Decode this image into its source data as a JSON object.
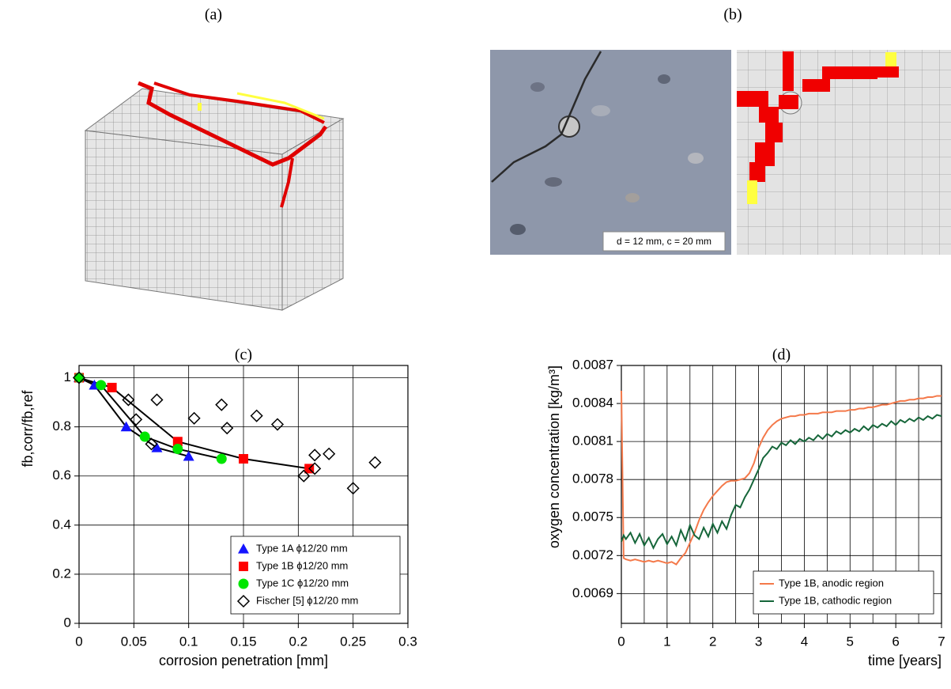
{
  "figure": {
    "panel_a": "(a)",
    "panel_b": "(b)",
    "photo_caption": "d = 12 mm, c = 20 mm"
  },
  "chart_data": [
    {
      "type": "scatter",
      "title": "(c)",
      "xlabel": "corrosion penetration [mm]",
      "ylabel": "fb,corr/fb,ref",
      "xlim": [
        0,
        0.3
      ],
      "xticks": [
        0,
        0.05,
        0.1,
        0.15,
        0.2,
        0.25,
        0.3
      ],
      "ylim": [
        0,
        1.05
      ],
      "yticks": [
        0,
        0.2,
        0.4,
        0.6,
        0.8,
        1
      ],
      "grid": true,
      "legend": "lower right",
      "series": [
        {
          "name": "Type 1A ϕ12/20 mm",
          "color": "#1414ff",
          "marker": "triangle",
          "line": true,
          "line_color": "#000000",
          "x": [
            0,
            0.014,
            0.043,
            0.071,
            0.1
          ],
          "values": [
            1,
            0.97,
            0.8,
            0.715,
            0.68
          ]
        },
        {
          "name": "Type 1B ϕ12/20 mm",
          "color": "#ff0000",
          "marker": "square",
          "line": true,
          "line_color": "#000000",
          "x": [
            0,
            0.03,
            0.09,
            0.15,
            0.21
          ],
          "values": [
            1,
            0.96,
            0.74,
            0.67,
            0.63
          ]
        },
        {
          "name": "Type 1C ϕ12/20 mm",
          "color": "#00e600",
          "marker": "circle",
          "line": true,
          "line_color": "#000000",
          "x": [
            0,
            0.02,
            0.06,
            0.09,
            0.13
          ],
          "values": [
            1,
            0.97,
            0.76,
            0.71,
            0.67
          ]
        },
        {
          "name": "Fischer [5] ϕ12/20 mm",
          "color": "#000000",
          "marker": "diamond",
          "line": false,
          "x": [
            0,
            0.045,
            0.052,
            0.071,
            0.066,
            0.105,
            0.13,
            0.135,
            0.162,
            0.181,
            0.205,
            0.215,
            0.215,
            0.228,
            0.25,
            0.27
          ],
          "values": [
            1,
            0.91,
            0.83,
            0.91,
            0.73,
            0.835,
            0.89,
            0.795,
            0.845,
            0.81,
            0.6,
            0.685,
            0.63,
            0.69,
            0.55,
            0.655
          ]
        }
      ]
    },
    {
      "type": "line",
      "title": "(d)",
      "xlabel": "time [years]",
      "ylabel": "oxygen concentration  [kg/m³]",
      "xlim": [
        0,
        7
      ],
      "xticks": [
        0,
        1,
        2,
        3,
        4,
        5,
        6,
        7
      ],
      "xminorgrid": [
        0.5,
        1.5,
        2.5,
        3.5,
        4.5,
        5.5,
        6.5
      ],
      "ylim": [
        0.006665,
        0.0087
      ],
      "yticks": [
        0.0069,
        0.0072,
        0.0075,
        0.0078,
        0.0081,
        0.0084,
        0.0087
      ],
      "grid": true,
      "legend": "lower right",
      "x": [
        0,
        0.05,
        0.1,
        0.2,
        0.3,
        0.4,
        0.5,
        0.6,
        0.7,
        0.8,
        0.9,
        1,
        1.1,
        1.2,
        1.3,
        1.4,
        1.5,
        1.6,
        1.7,
        1.8,
        1.9,
        2,
        2.1,
        2.2,
        2.3,
        2.4,
        2.5,
        2.6,
        2.7,
        2.8,
        2.9,
        3,
        3.1,
        3.2,
        3.3,
        3.4,
        3.5,
        3.6,
        3.7,
        3.8,
        3.9,
        4,
        4.1,
        4.2,
        4.3,
        4.4,
        4.5,
        4.6,
        4.7,
        4.8,
        4.9,
        5,
        5.1,
        5.2,
        5.3,
        5.4,
        5.5,
        5.6,
        5.7,
        5.8,
        5.9,
        6,
        6.1,
        6.2,
        6.3,
        6.4,
        6.5,
        6.6,
        6.7,
        6.8,
        6.9,
        7
      ],
      "series": [
        {
          "name": "Type 1B, anodic region",
          "color": "#f4794a",
          "values": [
            0.0085,
            0.00718,
            0.00717,
            0.00716,
            0.00717,
            0.00716,
            0.00715,
            0.00716,
            0.00715,
            0.00716,
            0.00715,
            0.00714,
            0.00715,
            0.00713,
            0.00718,
            0.00722,
            0.0073,
            0.00738,
            0.00748,
            0.00756,
            0.00762,
            0.00767,
            0.00771,
            0.00775,
            0.00778,
            0.00779,
            0.00779,
            0.0078,
            0.00781,
            0.00785,
            0.00793,
            0.00805,
            0.00813,
            0.00819,
            0.00823,
            0.00826,
            0.00828,
            0.00829,
            0.0083,
            0.0083,
            0.00831,
            0.00831,
            0.00832,
            0.00832,
            0.00832,
            0.00833,
            0.00833,
            0.00833,
            0.00834,
            0.00834,
            0.00834,
            0.00835,
            0.00835,
            0.00836,
            0.00836,
            0.00837,
            0.00837,
            0.00838,
            0.00839,
            0.00839,
            0.0084,
            0.00841,
            0.00842,
            0.00842,
            0.00843,
            0.00843,
            0.00844,
            0.00844,
            0.00845,
            0.00845,
            0.00846,
            0.00846
          ]
        },
        {
          "name": "Type 1B, cathodic region",
          "color": "#16663a",
          "values": [
            0.00731,
            0.00736,
            0.00733,
            0.00738,
            0.0073,
            0.00737,
            0.00728,
            0.00734,
            0.00726,
            0.00733,
            0.00737,
            0.00729,
            0.00735,
            0.00728,
            0.0074,
            0.00732,
            0.00744,
            0.00736,
            0.00733,
            0.00742,
            0.00735,
            0.00745,
            0.00738,
            0.00747,
            0.00741,
            0.00752,
            0.0076,
            0.00758,
            0.00766,
            0.00772,
            0.0078,
            0.00788,
            0.00797,
            0.00801,
            0.00806,
            0.00804,
            0.00809,
            0.00807,
            0.00811,
            0.00808,
            0.00812,
            0.0081,
            0.00813,
            0.00811,
            0.00815,
            0.00812,
            0.00816,
            0.00814,
            0.00818,
            0.00816,
            0.00819,
            0.00817,
            0.0082,
            0.00818,
            0.00822,
            0.00819,
            0.00823,
            0.00821,
            0.00824,
            0.00822,
            0.00826,
            0.00823,
            0.00827,
            0.00825,
            0.00828,
            0.00826,
            0.00829,
            0.00827,
            0.0083,
            0.00828,
            0.00831,
            0.0083
          ]
        }
      ]
    }
  ]
}
